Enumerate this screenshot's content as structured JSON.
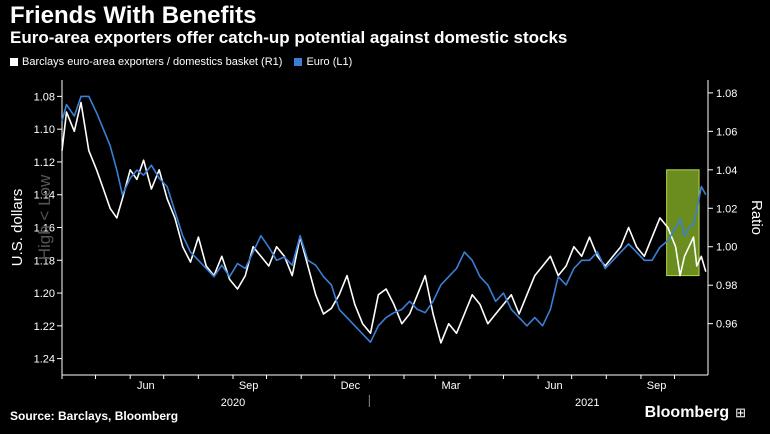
{
  "title": "Friends With Benefits",
  "subtitle": "Euro-area exporters offer catch-up potential against domestic stocks",
  "source": "Source: Barclays, Bloomberg",
  "brand": "Bloomberg",
  "chart_data": {
    "type": "line",
    "left_axis": {
      "label": "U.S. dollars",
      "inverted": true,
      "ticks": [
        "1.08",
        "1.10",
        "1.12",
        "1.14",
        "1.16",
        "1.18",
        "1.20",
        "1.22",
        "1.24"
      ],
      "range": [
        1.07,
        1.25
      ],
      "watermark": "High < Low"
    },
    "right_axis": {
      "label": "Ratio",
      "ticks": [
        "1.08",
        "1.06",
        "1.04",
        "1.02",
        "1.00",
        "0.98",
        "0.96"
      ],
      "range": [
        0.9333,
        1.0867
      ]
    },
    "x_axis": {
      "month_labels": [
        "Jun",
        "Sep",
        "Dec",
        "Mar",
        "Jun",
        "Sep"
      ],
      "year_labels": [
        "2020",
        "2021"
      ],
      "start": "2020-04-01",
      "end": "2021-10-31"
    },
    "legend": [
      {
        "label": "Barclays euro-area exporters / domestics basket (R1)",
        "color": "#ffffff"
      },
      {
        "label": "Euro  (L1)",
        "color": "#3a7fd6"
      }
    ],
    "highlight": {
      "x_start": "2021-09-24",
      "x_end": "2021-10-23",
      "color": "#8fbb2a"
    },
    "series": [
      {
        "name": "Barclays euro-area exporters / domestics basket (R1)",
        "axis": "right",
        "color": "#ffffff",
        "points": [
          [
            "2020-04-01",
            1.05
          ],
          [
            "2020-04-05",
            1.07
          ],
          [
            "2020-04-12",
            1.06
          ],
          [
            "2020-04-18",
            1.075
          ],
          [
            "2020-04-25",
            1.05
          ],
          [
            "2020-05-02",
            1.04
          ],
          [
            "2020-05-08",
            1.03
          ],
          [
            "2020-05-14",
            1.02
          ],
          [
            "2020-05-20",
            1.015
          ],
          [
            "2020-05-25",
            1.025
          ],
          [
            "2020-06-01",
            1.04
          ],
          [
            "2020-06-07",
            1.035
          ],
          [
            "2020-06-13",
            1.045
          ],
          [
            "2020-06-20",
            1.03
          ],
          [
            "2020-06-27",
            1.04
          ],
          [
            "2020-07-04",
            1.025
          ],
          [
            "2020-07-11",
            1.015
          ],
          [
            "2020-07-18",
            1.0
          ],
          [
            "2020-07-25",
            0.992
          ],
          [
            "2020-08-01",
            1.005
          ],
          [
            "2020-08-08",
            0.99
          ],
          [
            "2020-08-15",
            0.985
          ],
          [
            "2020-08-22",
            0.995
          ],
          [
            "2020-08-29",
            0.983
          ],
          [
            "2020-09-05",
            0.978
          ],
          [
            "2020-09-12",
            0.985
          ],
          [
            "2020-09-19",
            1.0
          ],
          [
            "2020-09-26",
            0.995
          ],
          [
            "2020-10-03",
            0.99
          ],
          [
            "2020-10-10",
            1.0
          ],
          [
            "2020-10-17",
            0.995
          ],
          [
            "2020-10-24",
            0.985
          ],
          [
            "2020-10-31",
            1.005
          ],
          [
            "2020-11-07",
            0.99
          ],
          [
            "2020-11-14",
            0.975
          ],
          [
            "2020-11-21",
            0.965
          ],
          [
            "2020-11-28",
            0.968
          ],
          [
            "2020-12-05",
            0.975
          ],
          [
            "2020-12-12",
            0.985
          ],
          [
            "2020-12-19",
            0.97
          ],
          [
            "2020-12-26",
            0.96
          ],
          [
            "2021-01-02",
            0.955
          ],
          [
            "2021-01-09",
            0.975
          ],
          [
            "2021-01-16",
            0.978
          ],
          [
            "2021-01-23",
            0.97
          ],
          [
            "2021-01-30",
            0.96
          ],
          [
            "2021-02-06",
            0.965
          ],
          [
            "2021-02-13",
            0.975
          ],
          [
            "2021-02-20",
            0.985
          ],
          [
            "2021-02-27",
            0.965
          ],
          [
            "2021-03-06",
            0.95
          ],
          [
            "2021-03-13",
            0.96
          ],
          [
            "2021-03-20",
            0.955
          ],
          [
            "2021-03-27",
            0.965
          ],
          [
            "2021-04-03",
            0.975
          ],
          [
            "2021-04-10",
            0.97
          ],
          [
            "2021-04-17",
            0.96
          ],
          [
            "2021-04-24",
            0.965
          ],
          [
            "2021-05-01",
            0.97
          ],
          [
            "2021-05-08",
            0.975
          ],
          [
            "2021-05-15",
            0.965
          ],
          [
            "2021-05-22",
            0.975
          ],
          [
            "2021-05-29",
            0.985
          ],
          [
            "2021-06-05",
            0.99
          ],
          [
            "2021-06-12",
            0.995
          ],
          [
            "2021-06-19",
            0.985
          ],
          [
            "2021-06-26",
            0.99
          ],
          [
            "2021-07-03",
            1.0
          ],
          [
            "2021-07-10",
            0.995
          ],
          [
            "2021-07-17",
            1.005
          ],
          [
            "2021-07-24",
            0.995
          ],
          [
            "2021-07-31",
            0.99
          ],
          [
            "2021-08-07",
            0.995
          ],
          [
            "2021-08-14",
            1.0
          ],
          [
            "2021-08-21",
            1.01
          ],
          [
            "2021-08-28",
            1.0
          ],
          [
            "2021-09-04",
            0.995
          ],
          [
            "2021-09-11",
            1.005
          ],
          [
            "2021-09-18",
            1.015
          ],
          [
            "2021-09-25",
            1.01
          ],
          [
            "2021-10-02",
            1.0
          ],
          [
            "2021-10-06",
            0.985
          ],
          [
            "2021-10-10",
            0.995
          ],
          [
            "2021-10-14",
            1.0
          ],
          [
            "2021-10-18",
            1.005
          ],
          [
            "2021-10-21",
            0.99
          ],
          [
            "2021-10-25",
            0.995
          ],
          [
            "2021-10-29",
            0.987
          ]
        ]
      },
      {
        "name": "Euro  (L1)",
        "axis": "left",
        "color": "#3a7fd6",
        "points": [
          [
            "2020-04-01",
            1.095
          ],
          [
            "2020-04-05",
            1.085
          ],
          [
            "2020-04-12",
            1.092
          ],
          [
            "2020-04-18",
            1.08
          ],
          [
            "2020-04-25",
            1.08
          ],
          [
            "2020-05-02",
            1.09
          ],
          [
            "2020-05-08",
            1.1
          ],
          [
            "2020-05-14",
            1.11
          ],
          [
            "2020-05-20",
            1.125
          ],
          [
            "2020-05-25",
            1.14
          ],
          [
            "2020-06-01",
            1.13
          ],
          [
            "2020-06-07",
            1.125
          ],
          [
            "2020-06-13",
            1.128
          ],
          [
            "2020-06-20",
            1.122
          ],
          [
            "2020-06-27",
            1.13
          ],
          [
            "2020-07-04",
            1.135
          ],
          [
            "2020-07-11",
            1.15
          ],
          [
            "2020-07-18",
            1.165
          ],
          [
            "2020-07-25",
            1.175
          ],
          [
            "2020-08-01",
            1.18
          ],
          [
            "2020-08-08",
            1.185
          ],
          [
            "2020-08-15",
            1.19
          ],
          [
            "2020-08-22",
            1.183
          ],
          [
            "2020-08-29",
            1.19
          ],
          [
            "2020-09-05",
            1.182
          ],
          [
            "2020-09-12",
            1.185
          ],
          [
            "2020-09-19",
            1.175
          ],
          [
            "2020-09-26",
            1.165
          ],
          [
            "2020-10-03",
            1.172
          ],
          [
            "2020-10-10",
            1.18
          ],
          [
            "2020-10-17",
            1.178
          ],
          [
            "2020-10-24",
            1.183
          ],
          [
            "2020-10-31",
            1.165
          ],
          [
            "2020-11-07",
            1.18
          ],
          [
            "2020-11-14",
            1.183
          ],
          [
            "2020-11-21",
            1.19
          ],
          [
            "2020-11-28",
            1.195
          ],
          [
            "2020-12-05",
            1.21
          ],
          [
            "2020-12-12",
            1.215
          ],
          [
            "2020-12-19",
            1.22
          ],
          [
            "2020-12-26",
            1.225
          ],
          [
            "2021-01-02",
            1.23
          ],
          [
            "2021-01-09",
            1.22
          ],
          [
            "2021-01-16",
            1.215
          ],
          [
            "2021-01-23",
            1.212
          ],
          [
            "2021-01-30",
            1.21
          ],
          [
            "2021-02-06",
            1.205
          ],
          [
            "2021-02-13",
            1.21
          ],
          [
            "2021-02-20",
            1.212
          ],
          [
            "2021-02-27",
            1.205
          ],
          [
            "2021-03-06",
            1.195
          ],
          [
            "2021-03-13",
            1.19
          ],
          [
            "2021-03-20",
            1.185
          ],
          [
            "2021-03-27",
            1.175
          ],
          [
            "2021-04-03",
            1.18
          ],
          [
            "2021-04-10",
            1.19
          ],
          [
            "2021-04-17",
            1.195
          ],
          [
            "2021-04-24",
            1.205
          ],
          [
            "2021-05-01",
            1.2
          ],
          [
            "2021-05-08",
            1.21
          ],
          [
            "2021-05-15",
            1.215
          ],
          [
            "2021-05-22",
            1.22
          ],
          [
            "2021-05-29",
            1.215
          ],
          [
            "2021-06-05",
            1.22
          ],
          [
            "2021-06-12",
            1.21
          ],
          [
            "2021-06-19",
            1.19
          ],
          [
            "2021-06-26",
            1.195
          ],
          [
            "2021-07-03",
            1.185
          ],
          [
            "2021-07-10",
            1.18
          ],
          [
            "2021-07-17",
            1.18
          ],
          [
            "2021-07-24",
            1.175
          ],
          [
            "2021-07-31",
            1.185
          ],
          [
            "2021-08-07",
            1.18
          ],
          [
            "2021-08-14",
            1.175
          ],
          [
            "2021-08-21",
            1.17
          ],
          [
            "2021-08-28",
            1.175
          ],
          [
            "2021-09-04",
            1.18
          ],
          [
            "2021-09-11",
            1.18
          ],
          [
            "2021-09-18",
            1.172
          ],
          [
            "2021-09-25",
            1.168
          ],
          [
            "2021-10-02",
            1.16
          ],
          [
            "2021-10-06",
            1.155
          ],
          [
            "2021-10-10",
            1.165
          ],
          [
            "2021-10-14",
            1.16
          ],
          [
            "2021-10-18",
            1.158
          ],
          [
            "2021-10-21",
            1.15
          ],
          [
            "2021-10-25",
            1.135
          ],
          [
            "2021-10-29",
            1.14
          ]
        ]
      }
    ]
  }
}
